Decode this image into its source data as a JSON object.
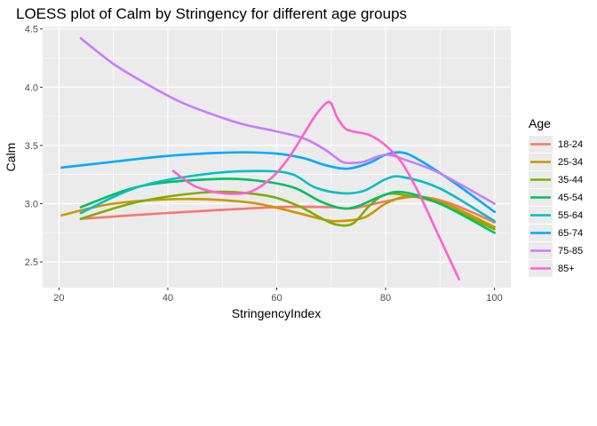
{
  "chart_data": {
    "type": "line",
    "title": "LOESS plot of Calm by Stringency for different age groups",
    "xlabel": "StringencyIndex",
    "ylabel": "Calm",
    "xlim": [
      17,
      103
    ],
    "ylim": [
      2.28,
      4.52
    ],
    "xticks": [
      20,
      40,
      60,
      80,
      100
    ],
    "yticks": [
      2.5,
      3.0,
      3.5,
      4.0,
      4.5
    ],
    "xtick_labels": [
      "20",
      "40",
      "60",
      "80",
      "100"
    ],
    "ytick_labels": [
      "2.5",
      "3.0",
      "3.5",
      "4.0",
      "4.5"
    ],
    "grid": true,
    "legend": {
      "title": "Age",
      "position": "right"
    },
    "series": [
      {
        "name": "18-24",
        "color": "#F8766D",
        "x": [
          24,
          40,
          60,
          70,
          74,
          80,
          86,
          92,
          100
        ],
        "y": [
          2.87,
          2.92,
          2.97,
          2.97,
          2.96,
          3.02,
          3.06,
          3.0,
          2.84
        ]
      },
      {
        "name": "25-34",
        "color": "#CD9600",
        "x": [
          20.5,
          30,
          43,
          55,
          63,
          68,
          71,
          76,
          80,
          84,
          90,
          100
        ],
        "y": [
          2.9,
          3.0,
          3.04,
          3.01,
          2.93,
          2.87,
          2.85,
          2.88,
          3.0,
          3.06,
          3.02,
          2.8
        ]
      },
      {
        "name": "35-44",
        "color": "#7CAE00",
        "x": [
          24,
          35,
          48,
          58,
          64,
          68,
          71,
          74,
          77,
          80,
          84,
          90,
          100
        ],
        "y": [
          2.87,
          3.02,
          3.1,
          3.07,
          2.98,
          2.88,
          2.82,
          2.83,
          2.98,
          3.08,
          3.07,
          3.0,
          2.78
        ]
      },
      {
        "name": "45-54",
        "color": "#00BE67",
        "x": [
          24,
          35,
          48,
          56,
          63,
          68,
          72,
          75,
          79,
          83,
          90,
          100
        ],
        "y": [
          2.97,
          3.15,
          3.21,
          3.2,
          3.14,
          3.02,
          2.96,
          2.98,
          3.06,
          3.1,
          3.0,
          2.75
        ]
      },
      {
        "name": "55-64",
        "color": "#00BFC4",
        "x": [
          24,
          35,
          48,
          58,
          63,
          67,
          72,
          76,
          80,
          83,
          90,
          100
        ],
        "y": [
          2.92,
          3.15,
          3.26,
          3.28,
          3.25,
          3.14,
          3.09,
          3.11,
          3.21,
          3.23,
          3.13,
          2.85
        ]
      },
      {
        "name": "65-74",
        "color": "#00A9FF",
        "x": [
          20.5,
          30,
          40,
          52,
          60,
          65,
          69,
          73,
          77,
          80,
          83,
          86,
          92,
          100
        ],
        "y": [
          3.31,
          3.36,
          3.41,
          3.44,
          3.43,
          3.39,
          3.33,
          3.3,
          3.35,
          3.42,
          3.44,
          3.38,
          3.2,
          2.93
        ]
      },
      {
        "name": "75-85",
        "color": "#C77CFF",
        "x": [
          24,
          30,
          36,
          42,
          48,
          54,
          60,
          65,
          69,
          72,
          74,
          76,
          80,
          84,
          90,
          100
        ],
        "y": [
          4.42,
          4.2,
          4.03,
          3.88,
          3.77,
          3.68,
          3.62,
          3.56,
          3.46,
          3.36,
          3.35,
          3.36,
          3.42,
          3.37,
          3.26,
          3.0
        ]
      },
      {
        "name": "85+",
        "color": "#FF61CC",
        "x": [
          41,
          45,
          50,
          55,
          59,
          62,
          65,
          67,
          69,
          70,
          71,
          72.5,
          74,
          77,
          80,
          83,
          86,
          89,
          91.5,
          93.5
        ],
        "y": [
          3.28,
          3.15,
          3.09,
          3.1,
          3.22,
          3.38,
          3.6,
          3.75,
          3.86,
          3.86,
          3.75,
          3.65,
          3.62,
          3.59,
          3.5,
          3.35,
          3.1,
          2.8,
          2.55,
          2.35
        ]
      }
    ]
  }
}
